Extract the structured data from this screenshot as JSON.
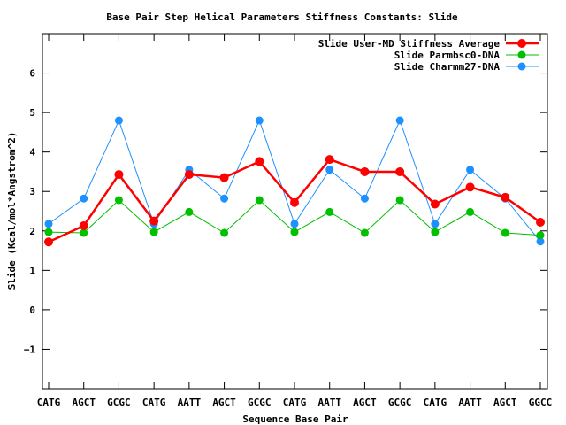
{
  "chart_data": {
    "type": "line",
    "title": "Base Pair Step Helical Parameters Stiffness Constants: Slide",
    "xlabel": "Sequence Base Pair",
    "ylabel": "Slide (Kcal/mol*Angstrom^2)",
    "ylim": [
      -2,
      7
    ],
    "yticks": [
      -1,
      0,
      1,
      2,
      3,
      4,
      5,
      6
    ],
    "grid": false,
    "legend_position": "top-right",
    "categories": [
      "CATG",
      "AGCT",
      "GCGC",
      "CATG",
      "AATT",
      "AGCT",
      "GCGC",
      "CATG",
      "AATT",
      "AGCT",
      "GCGC",
      "CATG",
      "AATT",
      "AGCT",
      "GGCC"
    ],
    "series": [
      {
        "name": "Slide Charmm27-DNA",
        "color": "#1e90ff",
        "values": [
          2.18,
          2.82,
          4.8,
          2.18,
          3.55,
          2.82,
          4.8,
          2.18,
          3.55,
          2.82,
          4.8,
          2.18,
          3.55,
          2.82,
          1.73
        ]
      },
      {
        "name": "Slide Parmbsc0-DNA",
        "color": "#00c000",
        "values": [
          1.97,
          1.95,
          2.78,
          1.97,
          2.48,
          1.95,
          2.78,
          1.97,
          2.48,
          1.95,
          2.78,
          1.97,
          2.48,
          1.95,
          1.89
        ]
      },
      {
        "name": "Slide User-MD Stiffness Average",
        "color": "#ff0000",
        "values": [
          1.72,
          2.13,
          3.43,
          2.25,
          3.43,
          3.35,
          3.76,
          2.72,
          3.81,
          3.5,
          3.5,
          2.68,
          3.11,
          2.85,
          2.22
        ]
      }
    ]
  }
}
